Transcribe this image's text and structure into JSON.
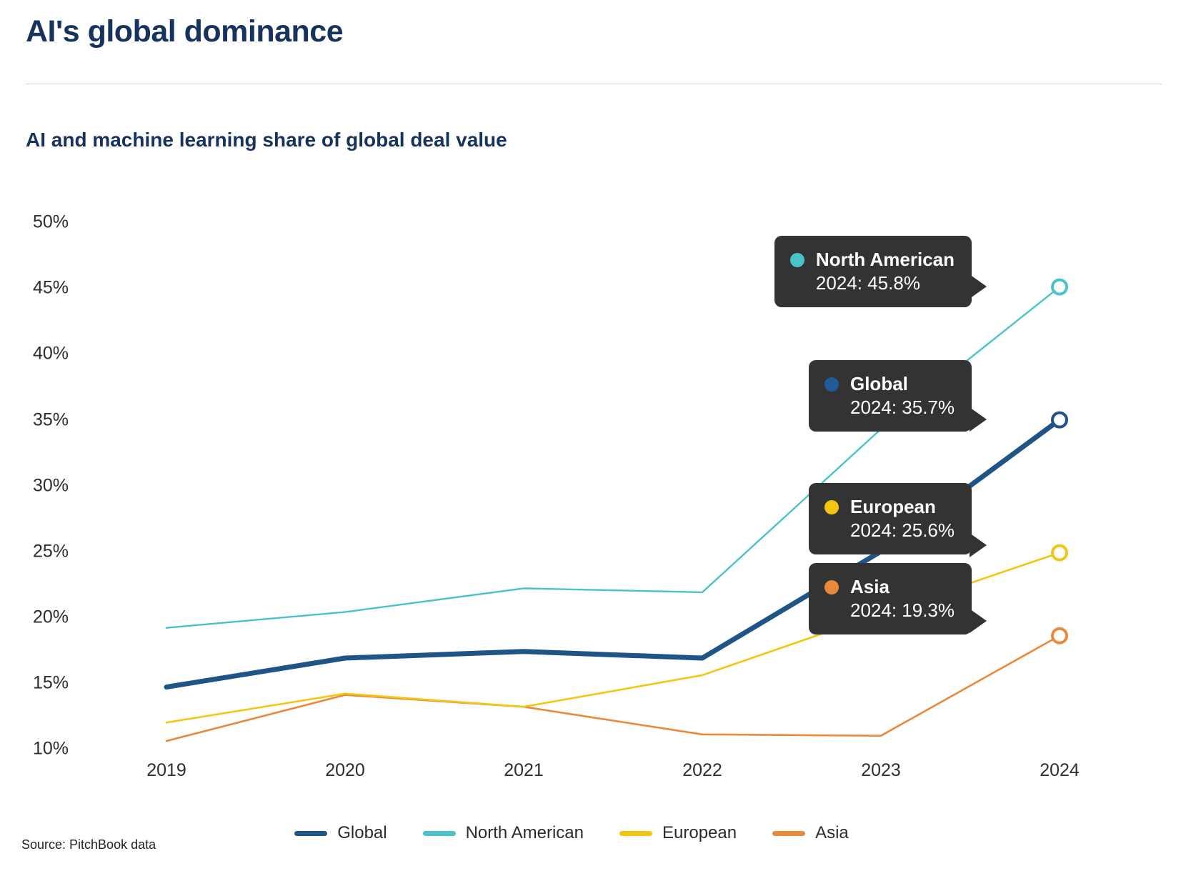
{
  "header": {
    "title": "AI's global dominance",
    "subtitle": "AI and machine learning share of global deal value"
  },
  "source_note": "Source: PitchBook data",
  "chart_data": {
    "type": "line",
    "title": "AI and machine learning share of global deal value",
    "x": [
      2019,
      2020,
      2021,
      2022,
      2023,
      2024
    ],
    "xlabel": "",
    "ylabel": "",
    "ylim": [
      10,
      50
    ],
    "ytick_step": 5,
    "ytick_suffix": "%",
    "grid": false,
    "legend_position": "bottom",
    "series": [
      {
        "name": "Global",
        "color": "#1f5487",
        "line_width": 7,
        "values": [
          15.4,
          17.6,
          18.1,
          17.6,
          25.7,
          35.7
        ],
        "end_marker": "open-circle"
      },
      {
        "name": "North American",
        "color": "#49c2ca",
        "line_width": 2.4,
        "values": [
          19.9,
          21.1,
          22.9,
          22.6,
          35.0,
          45.8
        ],
        "end_marker": "open-circle"
      },
      {
        "name": "European",
        "color": "#f3c711",
        "line_width": 2.6,
        "values": [
          12.7,
          14.9,
          13.9,
          16.3,
          21.0,
          25.6
        ],
        "end_marker": "open-circle"
      },
      {
        "name": "Asia",
        "color": "#e8893c",
        "line_width": 2.6,
        "values": [
          11.3,
          14.8,
          13.9,
          11.8,
          11.7,
          19.3
        ],
        "end_marker": "open-circle"
      }
    ]
  },
  "tooltips": [
    {
      "series": "North American",
      "title": "North American",
      "value": "2024: 45.8%",
      "color": "#49c2ca"
    },
    {
      "series": "Global",
      "title": "Global",
      "value": "2024: 35.7%",
      "color": "#1f5c99"
    },
    {
      "series": "European",
      "title": "European",
      "value": "2024: 25.6%",
      "color": "#f3c711"
    },
    {
      "series": "Asia",
      "title": "Asia",
      "value": "2024: 19.3%",
      "color": "#e8893c"
    }
  ],
  "colors": {
    "title_text": "#16325d",
    "axis_text": "#2e2e2e",
    "tooltip_bg": "#333333",
    "divider": "#cfcfcf",
    "background": "#ffffff"
  }
}
